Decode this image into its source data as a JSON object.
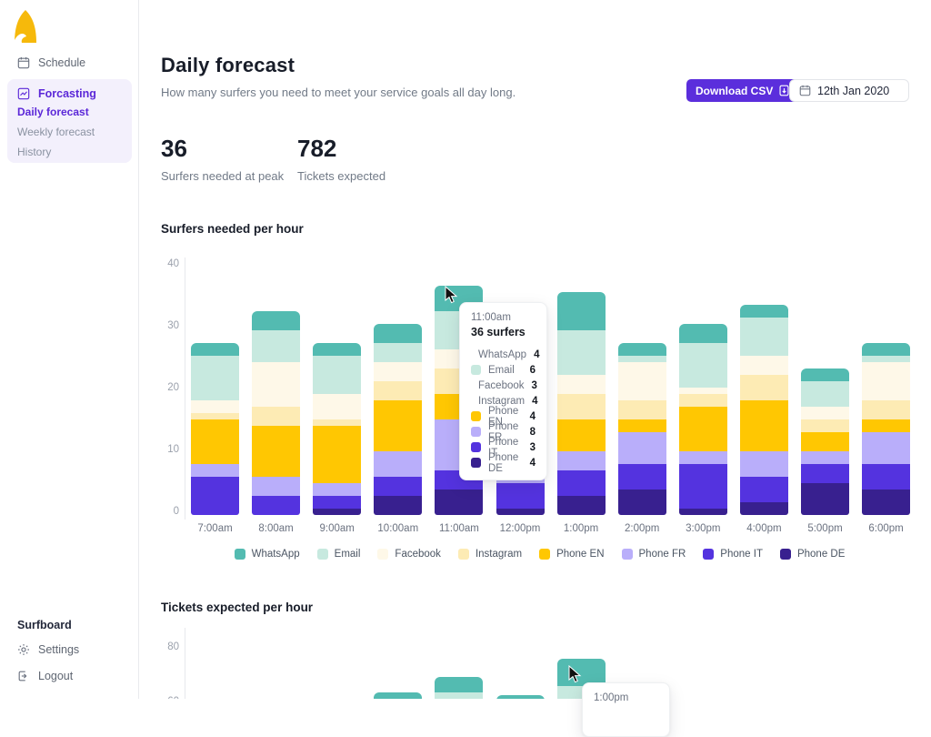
{
  "sidebar": {
    "schedule_label": "Schedule",
    "forecasting_group": {
      "label": "Forcasting",
      "items": [
        "Daily forecast",
        "Weekly forecast",
        "History"
      ],
      "active_item": "Daily forecast"
    },
    "footer": {
      "workspace": "Surfboard",
      "settings_label": "Settings",
      "logout_label": "Logout"
    }
  },
  "header": {
    "title": "Daily forecast",
    "subtitle": "How many surfers you need to meet your service goals all day long.",
    "download_button_label": "Download CSV",
    "date_value": "12th Jan 2020"
  },
  "stats": [
    {
      "value": "36",
      "label": "Surfers needed at peak"
    },
    {
      "value": "782",
      "label": "Tickets expected"
    }
  ],
  "colors": {
    "WhatsApp": "#53bbb1",
    "Email": "#c7e9df",
    "Facebook": "#fef8e8",
    "Instagram": "#fdebb4",
    "Phone EN": "#ffc702",
    "Phone FR": "#b9aefa",
    "Phone IT": "#5433df",
    "Phone DE": "#38208f",
    "accent_purple": "#5b2edc",
    "logo_gold": "#f6b90b"
  },
  "chart_data": [
    {
      "id": "surfers",
      "type": "bar",
      "stacked": true,
      "title": "Surfers needed per hour",
      "categories": [
        "7:00am",
        "8:00am",
        "9:00am",
        "10:00am",
        "11:00am",
        "12:00pm",
        "1:00pm",
        "2:00pm",
        "3:00pm",
        "4:00pm",
        "5:00pm",
        "6:00pm"
      ],
      "series": [
        {
          "name": "WhatsApp",
          "values": [
            2,
            3,
            2,
            3,
            4,
            4,
            6,
            2,
            3,
            2,
            2,
            2
          ]
        },
        {
          "name": "Email",
          "values": [
            7,
            5,
            6,
            3,
            6,
            5,
            7,
            1,
            7,
            6,
            4,
            1
          ]
        },
        {
          "name": "Facebook",
          "values": [
            2,
            7,
            4,
            3,
            3,
            4,
            3,
            6,
            1,
            3,
            2,
            6
          ]
        },
        {
          "name": "Instagram",
          "values": [
            1,
            3,
            1,
            3,
            4,
            4,
            4,
            3,
            2,
            4,
            2,
            3
          ]
        },
        {
          "name": "Phone EN",
          "values": [
            7,
            8,
            9,
            8,
            4,
            5,
            5,
            2,
            7,
            8,
            3,
            2
          ]
        },
        {
          "name": "Phone FR",
          "values": [
            2,
            3,
            2,
            4,
            8,
            4,
            3,
            5,
            2,
            4,
            2,
            5
          ]
        },
        {
          "name": "Phone IT",
          "values": [
            6,
            3,
            2,
            3,
            3,
            4,
            4,
            4,
            7,
            4,
            3,
            4
          ]
        },
        {
          "name": "Phone DE",
          "values": [
            0,
            0,
            1,
            3,
            4,
            1,
            3,
            4,
            1,
            2,
            5,
            4
          ]
        }
      ],
      "totals": [
        27,
        32,
        27,
        30,
        36,
        31,
        35,
        27,
        30,
        33,
        23,
        27
      ],
      "ylim": [
        0,
        40
      ],
      "yticks": [
        40,
        30,
        20,
        10,
        0
      ],
      "grid": false,
      "legend_position": "bottom",
      "tooltip": {
        "hour": "11:00am",
        "total_label": "36 surfers",
        "rows": [
          [
            "WhatsApp",
            4
          ],
          [
            "Email",
            6
          ],
          [
            "Facebook",
            3
          ],
          [
            "Instagram",
            4
          ],
          [
            "Phone EN",
            4
          ],
          [
            "Phone FR",
            8
          ],
          [
            "Phone IT",
            3
          ],
          [
            "Phone DE",
            4
          ]
        ]
      }
    },
    {
      "id": "tickets",
      "type": "bar",
      "stacked": true,
      "title": "Tickets expected per hour",
      "yticks": [
        80,
        60
      ],
      "grid": false,
      "visible_bars": [
        {
          "hour": "10:00am",
          "total": 65,
          "whatsapp": 8
        },
        {
          "hour": "11:00am",
          "total": 70,
          "whatsapp": 5
        },
        {
          "hour": "12:00pm",
          "total": 64,
          "whatsapp": 6
        },
        {
          "hour": "1:00pm",
          "total": 76,
          "whatsapp": 9
        }
      ],
      "tooltip": {
        "hour": "1:00pm"
      }
    }
  ]
}
